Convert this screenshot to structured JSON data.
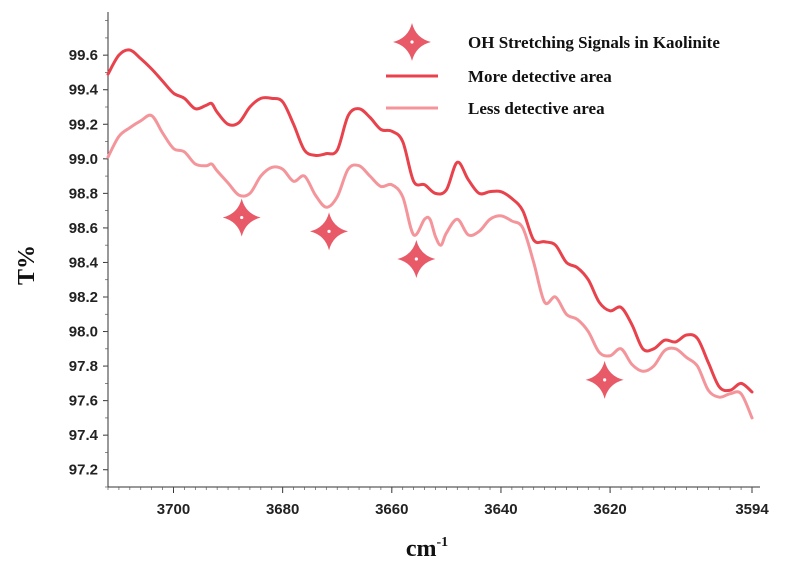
{
  "chart_data": {
    "type": "line",
    "xlabel": "cm",
    "xlabel_sup": "-1",
    "ylabel": "T%",
    "xlim": [
      3712,
      3594
    ],
    "ylim": [
      97.1,
      99.85
    ],
    "x_ticks": [
      3700,
      3680,
      3660,
      3640,
      3620,
      3594
    ],
    "x_tick_labels": [
      "3700",
      "3680",
      "3660",
      "3640",
      "3620",
      "3594"
    ],
    "y_ticks": [
      97.2,
      97.4,
      97.6,
      97.8,
      98.0,
      98.2,
      98.4,
      98.6,
      98.8,
      99.0,
      99.2,
      99.4,
      99.6
    ],
    "y_tick_labels": [
      "97.2",
      "97.4",
      "97.6",
      "97.8",
      "98.0",
      "98.2",
      "98.4",
      "98.6",
      "98.8",
      "99.0",
      "99.2",
      "99.4",
      "99.6"
    ],
    "legend": {
      "placement": "top-right",
      "marker_label": "OH  Stretching  Signals in Kaolinite",
      "items": [
        "More detective area",
        "Less detective area"
      ]
    },
    "series": [
      {
        "name": "More detective area",
        "color": "#e8424c",
        "points": [
          [
            3712,
            99.49
          ],
          [
            3710,
            99.6
          ],
          [
            3708,
            99.63
          ],
          [
            3706,
            99.58
          ],
          [
            3704,
            99.52
          ],
          [
            3702,
            99.45
          ],
          [
            3700,
            99.38
          ],
          [
            3698,
            99.35
          ],
          [
            3696,
            99.29
          ],
          [
            3694,
            99.31
          ],
          [
            3693,
            99.32
          ],
          [
            3692,
            99.27
          ],
          [
            3690,
            99.2
          ],
          [
            3688,
            99.21
          ],
          [
            3686,
            99.3
          ],
          [
            3684,
            99.35
          ],
          [
            3682,
            99.35
          ],
          [
            3680,
            99.33
          ],
          [
            3678,
            99.2
          ],
          [
            3676,
            99.05
          ],
          [
            3674,
            99.02
          ],
          [
            3672,
            99.03
          ],
          [
            3670,
            99.05
          ],
          [
            3668,
            99.25
          ],
          [
            3666,
            99.29
          ],
          [
            3664,
            99.24
          ],
          [
            3662,
            99.17
          ],
          [
            3660,
            99.16
          ],
          [
            3658,
            99.1
          ],
          [
            3656,
            98.87
          ],
          [
            3654,
            98.85
          ],
          [
            3652,
            98.8
          ],
          [
            3650,
            98.82
          ],
          [
            3648,
            98.98
          ],
          [
            3646,
            98.88
          ],
          [
            3644,
            98.8
          ],
          [
            3642,
            98.81
          ],
          [
            3640,
            98.81
          ],
          [
            3638,
            98.77
          ],
          [
            3636,
            98.7
          ],
          [
            3634,
            98.53
          ],
          [
            3632,
            98.52
          ],
          [
            3630,
            98.5
          ],
          [
            3628,
            98.4
          ],
          [
            3626,
            98.37
          ],
          [
            3624,
            98.3
          ],
          [
            3622,
            98.17
          ],
          [
            3620,
            98.12
          ],
          [
            3618,
            98.14
          ],
          [
            3616,
            98.04
          ],
          [
            3614,
            97.9
          ],
          [
            3612,
            97.9
          ],
          [
            3610,
            97.95
          ],
          [
            3608,
            97.94
          ],
          [
            3606,
            97.98
          ],
          [
            3604,
            97.96
          ],
          [
            3602,
            97.82
          ],
          [
            3600,
            97.68
          ],
          [
            3598,
            97.66
          ],
          [
            3596,
            97.7
          ],
          [
            3594,
            97.65
          ]
        ]
      },
      {
        "name": "Less detective area",
        "color": "#f4959b",
        "points": [
          [
            3712,
            99.01
          ],
          [
            3710,
            99.13
          ],
          [
            3708,
            99.18
          ],
          [
            3706,
            99.22
          ],
          [
            3704,
            99.25
          ],
          [
            3702,
            99.15
          ],
          [
            3700,
            99.06
          ],
          [
            3698,
            99.04
          ],
          [
            3696,
            98.97
          ],
          [
            3694,
            98.96
          ],
          [
            3693,
            98.97
          ],
          [
            3692,
            98.93
          ],
          [
            3690,
            98.86
          ],
          [
            3688,
            98.79
          ],
          [
            3686,
            98.8
          ],
          [
            3684,
            98.9
          ],
          [
            3682,
            98.95
          ],
          [
            3680,
            98.94
          ],
          [
            3678,
            98.87
          ],
          [
            3676,
            98.9
          ],
          [
            3674,
            98.79
          ],
          [
            3672,
            98.72
          ],
          [
            3670,
            98.78
          ],
          [
            3668,
            98.94
          ],
          [
            3666,
            98.96
          ],
          [
            3664,
            98.9
          ],
          [
            3662,
            98.84
          ],
          [
            3660,
            98.85
          ],
          [
            3658,
            98.78
          ],
          [
            3656,
            98.56
          ],
          [
            3654,
            98.65
          ],
          [
            3653,
            98.65
          ],
          [
            3652,
            98.55
          ],
          [
            3651,
            98.5
          ],
          [
            3650,
            98.57
          ],
          [
            3648,
            98.65
          ],
          [
            3646,
            98.56
          ],
          [
            3644,
            98.58
          ],
          [
            3642,
            98.65
          ],
          [
            3640,
            98.67
          ],
          [
            3638,
            98.64
          ],
          [
            3636,
            98.6
          ],
          [
            3634,
            98.4
          ],
          [
            3632,
            98.17
          ],
          [
            3630,
            98.2
          ],
          [
            3628,
            98.1
          ],
          [
            3626,
            98.07
          ],
          [
            3624,
            98.0
          ],
          [
            3622,
            97.88
          ],
          [
            3620,
            97.86
          ],
          [
            3618,
            97.9
          ],
          [
            3616,
            97.81
          ],
          [
            3614,
            97.77
          ],
          [
            3612,
            97.8
          ],
          [
            3610,
            97.89
          ],
          [
            3608,
            97.9
          ],
          [
            3606,
            97.85
          ],
          [
            3604,
            97.8
          ],
          [
            3602,
            97.66
          ],
          [
            3600,
            97.62
          ],
          [
            3598,
            97.64
          ],
          [
            3596,
            97.64
          ],
          [
            3594,
            97.5
          ]
        ]
      }
    ],
    "markers": {
      "color": "#e85a68",
      "points": [
        [
          3687.5,
          98.66
        ],
        [
          3671.5,
          98.58
        ],
        [
          3655.5,
          98.42
        ],
        [
          3621.0,
          97.72
        ]
      ]
    }
  }
}
